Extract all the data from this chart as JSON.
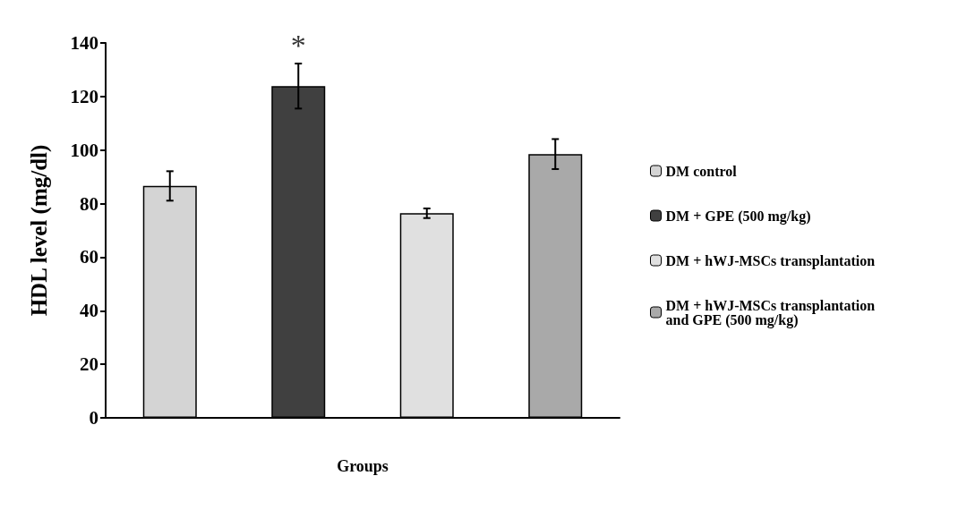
{
  "chart_data": {
    "type": "bar",
    "xlabel": "Groups",
    "ylabel": "HDL level (mg/dl)",
    "categories": [
      null,
      null,
      null,
      null
    ],
    "series": [
      {
        "name": "DM control",
        "color": "#d4d4d4",
        "values": [
          86.6,
          null,
          null,
          null
        ],
        "errors": [
          5.5,
          null,
          null,
          null
        ]
      },
      {
        "name": "DM + GPE (500 mg/kg)",
        "color": "#404040",
        "values": [
          null,
          123.9,
          null,
          null
        ],
        "errors": [
          null,
          8.4,
          null,
          null
        ]
      },
      {
        "name": "DM + hWJ-MSCs transplantation",
        "color": "#e0e0e0",
        "values": [
          null,
          null,
          76.4,
          null
        ],
        "errors": [
          null,
          null,
          1.8,
          null
        ]
      },
      {
        "name": "DM + hWJ-MSCs transplantation and GPE (500 mg/kg)",
        "color": "#a9a9a9",
        "values": [
          null,
          null,
          null,
          98.5
        ],
        "errors": [
          null,
          null,
          null,
          5.6
        ]
      }
    ],
    "annotations": [
      "*"
    ],
    "ylim": [
      0,
      140
    ],
    "yticks": [
      0,
      20,
      40,
      60,
      80,
      100,
      120,
      140
    ],
    "grid": false,
    "legend": "right"
  }
}
